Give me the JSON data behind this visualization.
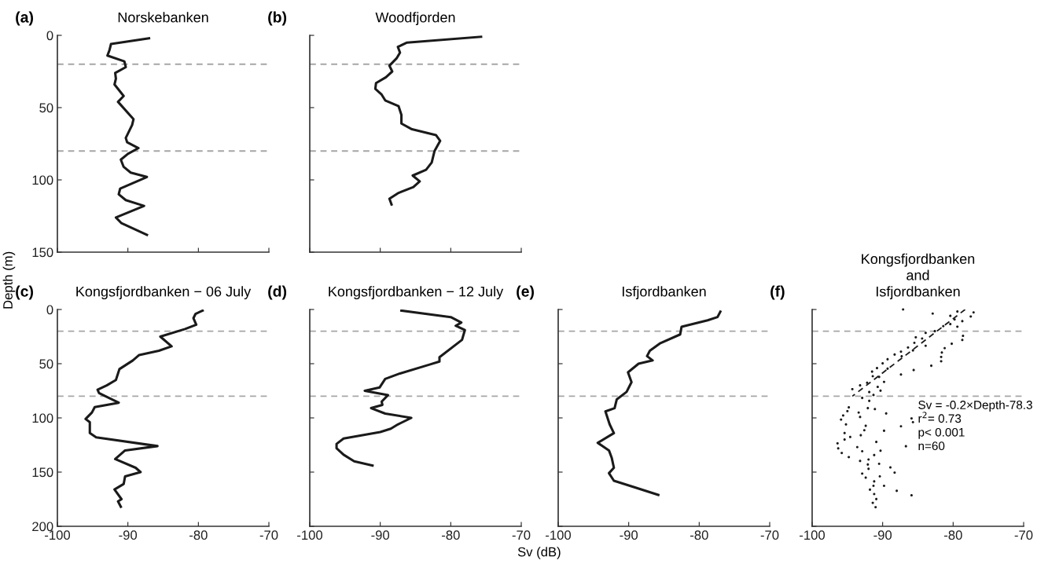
{
  "chart_data": [
    {
      "type": "line",
      "title": "Norskebanken",
      "ylabel": "Depth (m)",
      "annotations": [
        "(a)"
      ],
      "xlim": [
        -100,
        -70
      ],
      "xticks": [
        -100,
        -90,
        -80,
        -70
      ],
      "ylim": [
        150,
        0
      ],
      "yticks": [
        0,
        50,
        100,
        150
      ],
      "tick_labels": "y",
      "line_style": "solid",
      "ref_lines": [
        {
          "axis": "y",
          "value": 20,
          "color": "#a6a6a6",
          "line_style": "dashed"
        },
        {
          "axis": "y",
          "value": 80,
          "color": "#a6a6a6",
          "line_style": "dashed"
        }
      ],
      "series": [
        {
          "color": "#1a1a1a",
          "x": [
            -87.0,
            -92.4,
            -92.6,
            -92.9,
            -90.5,
            -90.3,
            -91.8,
            -91.7,
            -91.9,
            -90.6,
            -91.4,
            -89.2,
            -89.4,
            -90.3,
            -90.1,
            -88.5,
            -90.0,
            -91.0,
            -90.6,
            -89.6,
            -87.3,
            -91.1,
            -91.3,
            -90.3,
            -87.7,
            -91.7,
            -90.9,
            -87.3
          ],
          "values": [
            2,
            6,
            10,
            14,
            18,
            22,
            26,
            30,
            34,
            42,
            46,
            58,
            62,
            71,
            74,
            78,
            82,
            86,
            91,
            95,
            98,
            106,
            110,
            114,
            118,
            126,
            130,
            138
          ]
        }
      ]
    },
    {
      "type": "line",
      "title": "Woodfjorden",
      "annotations": [
        "(b)"
      ],
      "xlim": [
        -100,
        -70
      ],
      "xticks": [
        -100,
        -90,
        -80,
        -70
      ],
      "ylim": [
        150,
        0
      ],
      "yticks": [
        0,
        50,
        100,
        150
      ],
      "tick_labels": false,
      "line_style": "solid",
      "ref_lines": [
        {
          "axis": "y",
          "value": 20,
          "color": "#a6a6a6",
          "line_style": "dashed"
        },
        {
          "axis": "y",
          "value": 80,
          "color": "#a6a6a6",
          "line_style": "dashed"
        }
      ],
      "series": [
        {
          "color": "#1a1a1a",
          "x": [
            -75.7,
            -86.2,
            -87.5,
            -87.2,
            -87.7,
            -88.7,
            -88.3,
            -89.2,
            -90.6,
            -90.7,
            -89.8,
            -89.3,
            -87.4,
            -87.0,
            -87.0,
            -85.5,
            -82.1,
            -81.5,
            -82.3,
            -82.7,
            -83.5,
            -85.4,
            -84.4,
            -85.3,
            -87.4,
            -88.7,
            -88.4
          ],
          "values": [
            1,
            5,
            8,
            12,
            16,
            21,
            25,
            29,
            33,
            37,
            41,
            45,
            49,
            55,
            61,
            65,
            69,
            73,
            80,
            88,
            93,
            97,
            101,
            105,
            109,
            113,
            117
          ]
        }
      ]
    },
    {
      "type": "line",
      "title": "Kongsfjordbanken − 06 July",
      "annotations": [
        "(c)"
      ],
      "xlim": [
        -100,
        -70
      ],
      "xticks": [
        -100,
        -90,
        -80,
        -70
      ],
      "ylim": [
        200,
        0
      ],
      "yticks": [
        0,
        50,
        100,
        150,
        200
      ],
      "line_style": "solid",
      "ref_lines": [
        {
          "axis": "y",
          "value": 20,
          "color": "#a6a6a6",
          "line_style": "dashed"
        },
        {
          "axis": "y",
          "value": 80,
          "color": "#a6a6a6",
          "line_style": "dashed"
        }
      ],
      "series": [
        {
          "color": "#1a1a1a",
          "x": [
            -79.4,
            -80.4,
            -80.7,
            -80.3,
            -81.9,
            -85.4,
            -83.8,
            -85.6,
            -88.4,
            -89.3,
            -91.2,
            -91.7,
            -93.0,
            -94.3,
            -94.1,
            -91.3,
            -94.7,
            -95.1,
            -96.0,
            -95.4,
            -95.4,
            -94.5,
            -85.8,
            -90.4,
            -91.8,
            -88.9,
            -88.2,
            -90.4,
            -90.6,
            -91.9,
            -90.9,
            -91.4,
            -91.0
          ],
          "values": [
            1,
            4,
            8,
            14,
            18,
            25,
            34,
            38,
            42,
            47,
            55,
            65,
            70,
            74,
            77,
            86,
            90,
            95,
            101,
            104,
            114,
            118,
            126,
            130,
            138,
            146,
            150,
            154,
            161,
            166,
            175,
            177,
            182
          ]
        }
      ]
    },
    {
      "type": "line",
      "title": "Kongsfjordbanken − 12 July",
      "xlabel": "Sv (dB)",
      "annotations": [
        "(d)"
      ],
      "xlim": [
        -100,
        -70
      ],
      "xticks": [
        -100,
        -90,
        -80,
        -70
      ],
      "ylim": [
        200,
        0
      ],
      "yticks": [
        0,
        50,
        100,
        150,
        200
      ],
      "tick_labels": "x",
      "line_style": "solid",
      "ref_lines": [
        {
          "axis": "y",
          "value": 20,
          "color": "#a6a6a6",
          "line_style": "dashed"
        },
        {
          "axis": "y",
          "value": 80,
          "color": "#a6a6a6",
          "line_style": "dashed"
        }
      ],
      "series": [
        {
          "color": "#1a1a1a",
          "x": [
            -87.0,
            -80.0,
            -78.5,
            -79.3,
            -78.0,
            -78.4,
            -81.6,
            -81.6,
            -83.1,
            -87.2,
            -89.3,
            -90.1,
            -92.2,
            -88.9,
            -89.8,
            -89.7,
            -91.3,
            -89.3,
            -85.6,
            -87.5,
            -88.5,
            -90.0,
            -95.2,
            -96.2,
            -96.2,
            -95.2,
            -93.7,
            -91.1
          ],
          "values": [
            1,
            7,
            12,
            15,
            19,
            28,
            44,
            48,
            51,
            59,
            64,
            72,
            75,
            79,
            85,
            88,
            91,
            96,
            100,
            106,
            110,
            113,
            119,
            124,
            128,
            134,
            140,
            144
          ]
        }
      ]
    },
    {
      "type": "line",
      "title": "Isfjordbanken",
      "annotations": [
        "(e)"
      ],
      "xlim": [
        -100,
        -70
      ],
      "xticks": [
        -100,
        -90,
        -80,
        -70
      ],
      "ylim": [
        200,
        0
      ],
      "yticks": [
        0,
        50,
        100,
        150,
        200
      ],
      "tick_labels": "x",
      "line_style": "solid",
      "ref_lines": [
        {
          "axis": "y",
          "value": 20,
          "color": "#a6a6a6",
          "line_style": "dashed"
        },
        {
          "axis": "y",
          "value": 80,
          "color": "#a6a6a6",
          "line_style": "dashed"
        }
      ],
      "series": [
        {
          "color": "#1a1a1a",
          "x": [
            -77.0,
            -77.4,
            -78.8,
            -82.5,
            -82.7,
            -85.5,
            -87.0,
            -87.4,
            -86.6,
            -88.6,
            -90.1,
            -89.6,
            -90.3,
            -91.7,
            -92.0,
            -93.3,
            -92.7,
            -92.1,
            -94.4,
            -92.8,
            -92.4,
            -92.1,
            -92.8,
            -92.1,
            -89.2,
            -85.8
          ],
          "values": [
            2,
            7,
            10,
            16,
            23,
            31,
            38,
            43,
            47,
            50,
            58,
            67,
            76,
            83,
            91,
            94,
            106,
            114,
            123,
            130,
            137,
            146,
            151,
            158,
            164,
            171
          ]
        }
      ]
    },
    {
      "type": "scatter",
      "title": "Kongsfjordbanken\nand\nIsfjordbanken",
      "annotations": [
        "(f)",
        "Sv = -0.2×Depth-78.3",
        "r$^{2}$= 0.73",
        "p< 0.001",
        "n=60"
      ],
      "xlim": [
        -100,
        -70
      ],
      "xticks": [
        -100,
        -90,
        -80,
        -70
      ],
      "ylim": [
        200,
        0
      ],
      "yticks": [
        0,
        50,
        100,
        150,
        200
      ],
      "tick_labels": "x",
      "ref_lines": [
        {
          "axis": "y",
          "value": 20,
          "color": "#a6a6a6",
          "line_style": "dashed"
        },
        {
          "axis": "y",
          "value": 80,
          "color": "#a6a6a6",
          "line_style": "dashed"
        }
      ],
      "series": [
        {
          "type": "scatter",
          "marker": "circle",
          "color": "#1a1a1a",
          "x": [
            -87.1,
            -82.9,
            -79.4,
            -77.1,
            -77.5,
            -80.4,
            -79.8,
            -78.7,
            -80.4,
            -79.4,
            -81.4,
            -78.6,
            -78.7,
            -82.6,
            -83.9,
            -84.4,
            -83.9,
            -85.3,
            -85.5,
            -85.7,
            -86.4,
            -87.4,
            -87.3,
            -88.3,
            -80.2,
            -81.2,
            -81.6,
            -81.7,
            -81.7,
            -83.1,
            -85.6,
            -87.4,
            -89.3,
            -90.0,
            -89.3,
            -90.8,
            -91.5,
            -91.4,
            -92.2,
            -93.2,
            -90.5,
            -89.8,
            -90.7,
            -90.3,
            -94.3,
            -91.9,
            -91.3,
            -92.9,
            -91.9,
            -92.1,
            -91.1,
            -89.5,
            -94.8,
            -95.0,
            -95.9,
            -95.6,
            -95.2,
            -93.4,
            -93.2,
            -92.4,
            -92.6,
            -93.1,
            -95.4,
            -95.4,
            -94.6,
            -96.4,
            -96.3,
            -95.8,
            -94.8,
            -89.8,
            -90.9,
            -90.3,
            -93.6,
            -92.9,
            -93.2,
            -92.0,
            -91.2,
            -92.1,
            -92.0,
            -92.9,
            -92.4,
            -90.5,
            -90.4,
            -91.2,
            -91.3,
            -89.8,
            -91.8,
            -91.2,
            -90.9,
            -91.4,
            -91.0,
            -87.4,
            -86.7,
            -85.9,
            -85.7,
            -88.9,
            -88.3,
            -88.0,
            -85.9
          ],
          "values": [
            0,
            3.8,
            1.9,
            2.7,
            6.5,
            5.9,
            9.2,
            10.8,
            13.5,
            15.9,
            15.4,
            24.3,
            28.1,
            20,
            21.6,
            26.8,
            33.5,
            25.7,
            30.8,
            37.8,
            35.1,
            38.9,
            43.2,
            41.6,
            31.6,
            35.7,
            39.7,
            43.8,
            47.8,
            51.9,
            55.9,
            60,
            45.9,
            49.7,
            54.6,
            54.1,
            57.3,
            61.6,
            67.6,
            70,
            62.2,
            66.8,
            71.4,
            74.9,
            73.5,
            76.2,
            78.9,
            81.6,
            84.3,
            91,
            91.9,
            95.9,
            90.3,
            93.8,
            101.6,
            97.8,
            106,
            95.1,
            99.2,
            107.3,
            111.4,
            116,
            114,
            120,
            117.6,
            123.5,
            128.1,
            132.4,
            136.2,
            111.9,
            122.2,
            130.3,
            127,
            130.8,
            139.7,
            138.4,
            134.3,
            143,
            147,
            151.4,
            155.1,
            142.4,
            154,
            158.6,
            162.7,
            162.7,
            166.2,
            170.3,
            174.9,
            178.4,
            182.4,
            107.8,
            126.2,
            100.5,
            104,
            145.7,
            150.5,
            167.3,
            171.4
          ]
        },
        {
          "type": "line",
          "line_style": "dashed",
          "color": "#1a1a1a",
          "x": [
            -78.3,
            -94.3
          ],
          "values": [
            0,
            80
          ]
        }
      ]
    }
  ]
}
